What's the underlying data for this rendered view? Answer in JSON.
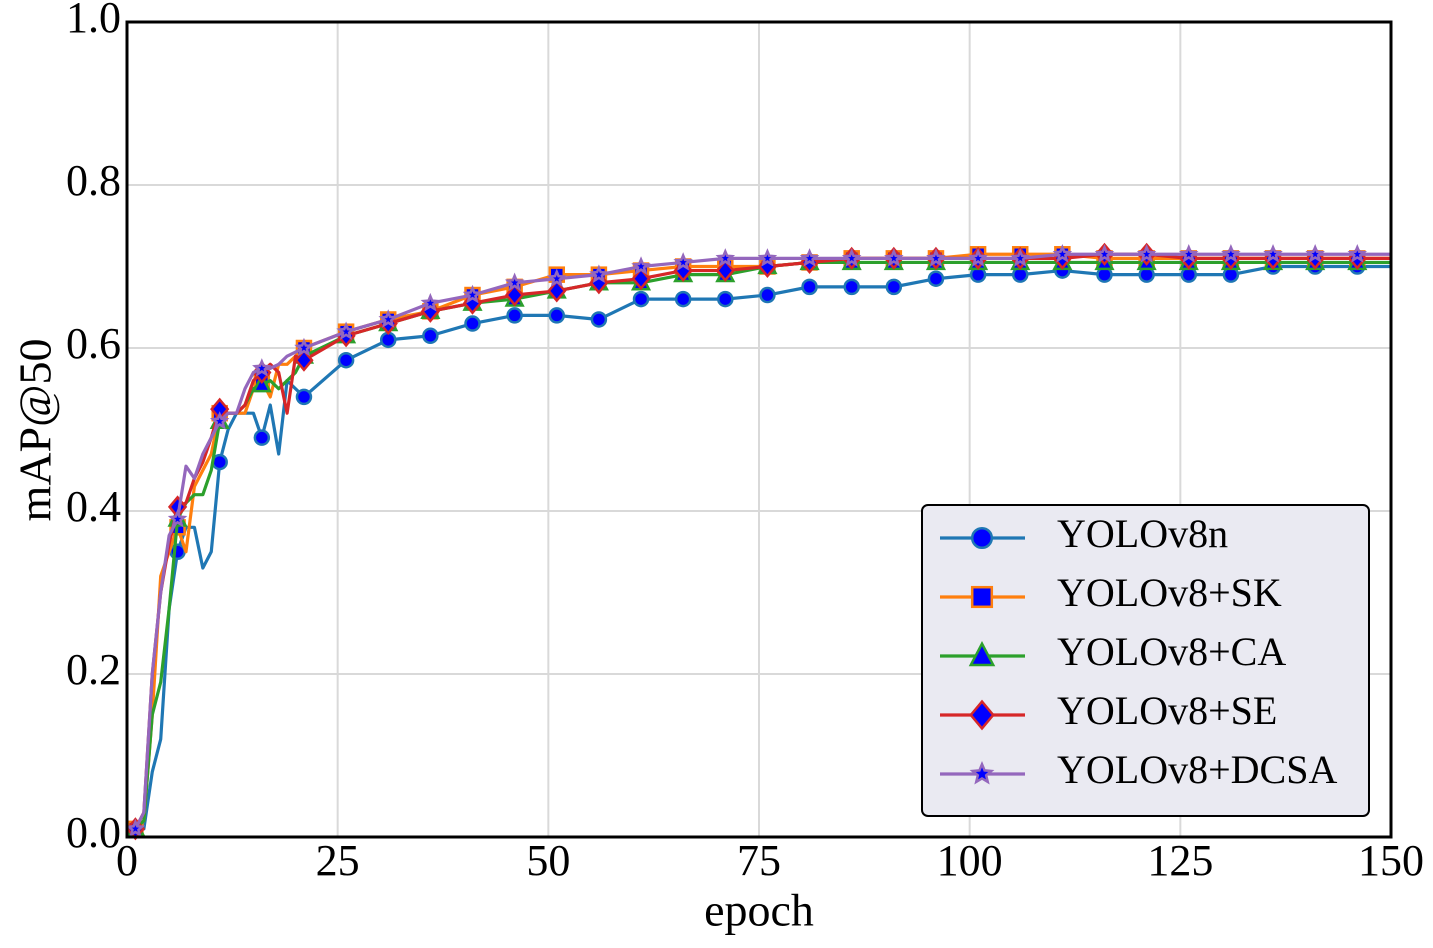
{
  "chart_data": {
    "type": "line",
    "x_label": "epoch",
    "y_label": "mAP@50",
    "x": [
      1,
      2,
      3,
      4,
      5,
      6,
      7,
      8,
      9,
      10,
      11,
      12,
      13,
      14,
      15,
      16,
      17,
      18,
      19,
      20,
      21,
      26,
      31,
      36,
      41,
      46,
      51,
      56,
      61,
      66,
      71,
      76,
      81,
      86,
      91,
      96,
      101,
      106,
      111,
      116,
      121,
      126,
      131,
      136,
      141,
      146,
      150
    ],
    "series": [
      {
        "name": "YOLOv8n",
        "color": "#1f77b4",
        "marker": "circle",
        "marker_face_color": "#0000ff",
        "values": [
          0.01,
          0.01,
          0.08,
          0.12,
          0.28,
          0.35,
          0.38,
          0.38,
          0.33,
          0.35,
          0.46,
          0.5,
          0.52,
          0.52,
          0.52,
          0.49,
          0.53,
          0.47,
          0.56,
          0.55,
          0.54,
          0.585,
          0.61,
          0.615,
          0.63,
          0.64,
          0.64,
          0.635,
          0.66,
          0.66,
          0.66,
          0.665,
          0.675,
          0.675,
          0.675,
          0.685,
          0.69,
          0.69,
          0.695,
          0.69,
          0.69,
          0.69,
          0.69,
          0.7,
          0.7,
          0.7,
          0.7
        ]
      },
      {
        "name": "YOLOv8+SK",
        "color": "#ff7f0e",
        "marker": "square",
        "marker_face_color": "#0000ff",
        "values": [
          0.01,
          0.02,
          0.15,
          0.32,
          0.35,
          0.38,
          0.35,
          0.43,
          0.45,
          0.47,
          0.52,
          0.52,
          0.52,
          0.52,
          0.55,
          0.56,
          0.54,
          0.58,
          0.58,
          0.59,
          0.6,
          0.62,
          0.635,
          0.645,
          0.665,
          0.675,
          0.69,
          0.69,
          0.695,
          0.7,
          0.7,
          0.7,
          0.705,
          0.71,
          0.71,
          0.71,
          0.715,
          0.715,
          0.715,
          0.71,
          0.71,
          0.71,
          0.71,
          0.71,
          0.71,
          0.71,
          0.71
        ]
      },
      {
        "name": "YOLOv8+CA",
        "color": "#2ca02c",
        "marker": "triangle",
        "marker_face_color": "#0000ff",
        "values": [
          0.01,
          0.02,
          0.15,
          0.19,
          0.28,
          0.39,
          0.41,
          0.42,
          0.42,
          0.45,
          0.51,
          0.52,
          0.52,
          0.53,
          0.55,
          0.555,
          0.56,
          0.55,
          0.56,
          0.57,
          0.59,
          0.615,
          0.63,
          0.645,
          0.655,
          0.66,
          0.67,
          0.68,
          0.68,
          0.69,
          0.69,
          0.7,
          0.705,
          0.705,
          0.705,
          0.705,
          0.705,
          0.705,
          0.705,
          0.705,
          0.705,
          0.705,
          0.705,
          0.705,
          0.705,
          0.705,
          0.705
        ]
      },
      {
        "name": "YOLOv8+SE",
        "color": "#d62728",
        "marker": "diamond",
        "marker_face_color": "#0000ff",
        "values": [
          0.01,
          0.03,
          0.2,
          0.3,
          0.36,
          0.405,
          0.41,
          0.44,
          0.46,
          0.49,
          0.525,
          0.52,
          0.52,
          0.53,
          0.56,
          0.57,
          0.58,
          0.57,
          0.52,
          0.59,
          0.585,
          0.615,
          0.63,
          0.645,
          0.655,
          0.665,
          0.67,
          0.68,
          0.685,
          0.695,
          0.695,
          0.7,
          0.705,
          0.71,
          0.71,
          0.71,
          0.71,
          0.71,
          0.71,
          0.715,
          0.715,
          0.71,
          0.71,
          0.71,
          0.71,
          0.71,
          0.71
        ]
      },
      {
        "name": "YOLOv8+DCSA",
        "color": "#9467bd",
        "marker": "star",
        "marker_face_color": "#0000ff",
        "values": [
          0.01,
          0.03,
          0.2,
          0.3,
          0.37,
          0.39,
          0.455,
          0.44,
          0.47,
          0.49,
          0.51,
          0.52,
          0.52,
          0.55,
          0.57,
          0.575,
          0.575,
          0.58,
          0.59,
          0.595,
          0.6,
          0.62,
          0.635,
          0.655,
          0.665,
          0.68,
          0.685,
          0.69,
          0.7,
          0.705,
          0.71,
          0.71,
          0.71,
          0.71,
          0.71,
          0.71,
          0.71,
          0.71,
          0.715,
          0.715,
          0.715,
          0.715,
          0.715,
          0.715,
          0.715,
          0.715,
          0.715
        ]
      }
    ],
    "xlim": [
      0,
      150
    ],
    "ylim": [
      0,
      1
    ],
    "xticks": [
      0,
      25,
      50,
      75,
      100,
      125,
      150
    ],
    "yticks": [
      {
        "value": 0,
        "label": "0.0"
      },
      0.2,
      0.4,
      0.6,
      0.8,
      {
        "value": 1,
        "label": "1.0"
      }
    ],
    "grid": true,
    "legend": "lower right"
  }
}
